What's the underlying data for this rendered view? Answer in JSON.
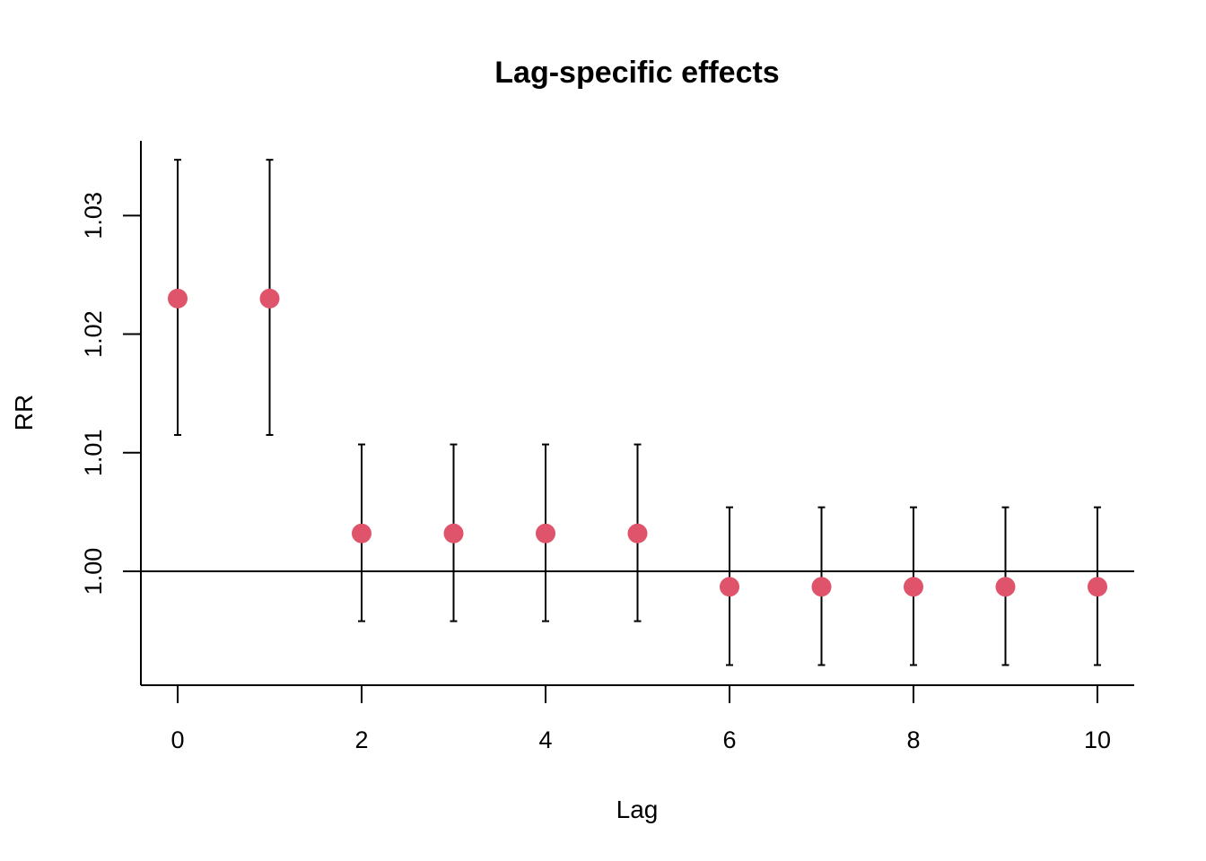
{
  "chart_data": {
    "type": "scatter",
    "title": "Lag-specific effects",
    "xlabel": "Lag",
    "ylabel": "RR",
    "xlim": [
      -0.4,
      10.4
    ],
    "ylim": [
      0.9904,
      1.0363
    ],
    "x_ticks": [
      0,
      2,
      4,
      6,
      8,
      10
    ],
    "y_ticks": [
      "1.00",
      "1.01",
      "1.02",
      "1.03"
    ],
    "y_tick_values": [
      1.0,
      1.01,
      1.02,
      1.03
    ],
    "reference_line": 1.0,
    "point_color": "#DF536B",
    "series": [
      {
        "x": [
          0,
          1,
          2,
          3,
          4,
          5,
          6,
          7,
          8,
          9,
          10
        ],
        "values": [
          1.023,
          1.023,
          1.0032,
          1.0032,
          1.0032,
          1.0032,
          0.9987,
          0.9987,
          0.9987,
          0.9987,
          0.9987
        ],
        "lower": [
          1.0115,
          1.0115,
          0.9958,
          0.9958,
          0.9958,
          0.9958,
          0.9921,
          0.9921,
          0.9921,
          0.9921,
          0.9921
        ],
        "upper": [
          1.0347,
          1.0347,
          1.0107,
          1.0107,
          1.0107,
          1.0107,
          1.0054,
          1.0054,
          1.0054,
          1.0054,
          1.0054
        ]
      }
    ]
  }
}
